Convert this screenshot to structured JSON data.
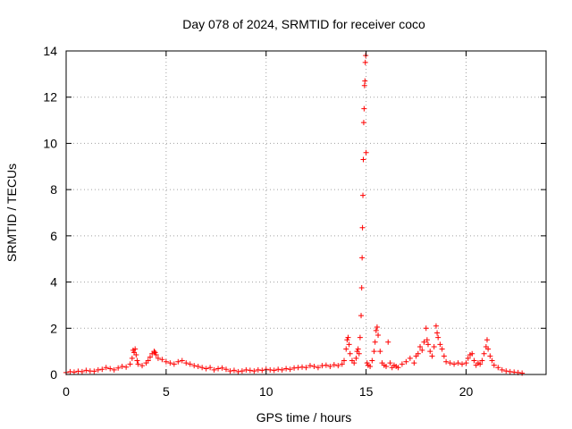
{
  "chart_data": {
    "type": "scatter",
    "title": "Day 078 of 2024, SRMTID for receiver coco",
    "xlabel": "GPS time / hours",
    "ylabel": "SRMTID / TECUs",
    "xlim": [
      0,
      24
    ],
    "ylim": [
      0,
      14
    ],
    "x_ticks": [
      0,
      5,
      10,
      15,
      20
    ],
    "y_ticks": [
      0,
      2,
      4,
      6,
      8,
      10,
      12,
      14
    ],
    "grid": true,
    "marker": "+",
    "series": [
      {
        "name": "SRMTID",
        "color": "#ff0000",
        "points": [
          [
            0.0,
            0.08
          ],
          [
            0.2,
            0.12
          ],
          [
            0.4,
            0.1
          ],
          [
            0.6,
            0.14
          ],
          [
            0.8,
            0.12
          ],
          [
            1.0,
            0.18
          ],
          [
            1.2,
            0.15
          ],
          [
            1.4,
            0.14
          ],
          [
            1.6,
            0.2
          ],
          [
            1.8,
            0.22
          ],
          [
            2.0,
            0.3
          ],
          [
            2.2,
            0.25
          ],
          [
            2.4,
            0.2
          ],
          [
            2.6,
            0.28
          ],
          [
            2.8,
            0.35
          ],
          [
            3.0,
            0.32
          ],
          [
            3.2,
            0.45
          ],
          [
            3.3,
            0.7
          ],
          [
            3.35,
            1.05
          ],
          [
            3.4,
            0.95
          ],
          [
            3.45,
            1.1
          ],
          [
            3.5,
            0.85
          ],
          [
            3.55,
            0.6
          ],
          [
            3.6,
            0.45
          ],
          [
            3.8,
            0.38
          ],
          [
            4.0,
            0.5
          ],
          [
            4.1,
            0.6
          ],
          [
            4.2,
            0.75
          ],
          [
            4.3,
            0.9
          ],
          [
            4.4,
            1.0
          ],
          [
            4.45,
            0.95
          ],
          [
            4.5,
            0.85
          ],
          [
            4.6,
            0.7
          ],
          [
            4.8,
            0.65
          ],
          [
            5.0,
            0.55
          ],
          [
            5.2,
            0.5
          ],
          [
            5.4,
            0.45
          ],
          [
            5.6,
            0.55
          ],
          [
            5.8,
            0.6
          ],
          [
            6.0,
            0.5
          ],
          [
            6.2,
            0.45
          ],
          [
            6.4,
            0.38
          ],
          [
            6.6,
            0.35
          ],
          [
            6.8,
            0.3
          ],
          [
            7.0,
            0.25
          ],
          [
            7.2,
            0.3
          ],
          [
            7.4,
            0.2
          ],
          [
            7.6,
            0.25
          ],
          [
            7.8,
            0.28
          ],
          [
            8.0,
            0.22
          ],
          [
            8.2,
            0.15
          ],
          [
            8.4,
            0.18
          ],
          [
            8.6,
            0.12
          ],
          [
            8.8,
            0.15
          ],
          [
            9.0,
            0.2
          ],
          [
            9.2,
            0.18
          ],
          [
            9.4,
            0.15
          ],
          [
            9.6,
            0.2
          ],
          [
            9.8,
            0.18
          ],
          [
            10.0,
            0.22
          ],
          [
            10.2,
            0.2
          ],
          [
            10.4,
            0.18
          ],
          [
            10.6,
            0.22
          ],
          [
            10.8,
            0.2
          ],
          [
            11.0,
            0.25
          ],
          [
            11.2,
            0.22
          ],
          [
            11.4,
            0.28
          ],
          [
            11.6,
            0.3
          ],
          [
            11.8,
            0.32
          ],
          [
            12.0,
            0.3
          ],
          [
            12.2,
            0.38
          ],
          [
            12.4,
            0.35
          ],
          [
            12.6,
            0.3
          ],
          [
            12.8,
            0.38
          ],
          [
            13.0,
            0.4
          ],
          [
            13.2,
            0.35
          ],
          [
            13.4,
            0.42
          ],
          [
            13.6,
            0.38
          ],
          [
            13.8,
            0.45
          ],
          [
            13.9,
            0.6
          ],
          [
            14.0,
            1.1
          ],
          [
            14.05,
            1.5
          ],
          [
            14.1,
            1.6
          ],
          [
            14.15,
            1.3
          ],
          [
            14.2,
            0.9
          ],
          [
            14.3,
            0.6
          ],
          [
            14.4,
            0.5
          ],
          [
            14.5,
            0.7
          ],
          [
            14.55,
            1.0
          ],
          [
            14.6,
            1.1
          ],
          [
            14.65,
            0.9
          ],
          [
            14.7,
            1.6
          ],
          [
            14.75,
            2.55
          ],
          [
            14.78,
            3.75
          ],
          [
            14.8,
            5.05
          ],
          [
            14.82,
            6.35
          ],
          [
            14.84,
            7.75
          ],
          [
            14.86,
            9.3
          ],
          [
            14.88,
            10.9
          ],
          [
            14.9,
            11.5
          ],
          [
            14.92,
            12.5
          ],
          [
            14.94,
            12.7
          ],
          [
            14.96,
            13.5
          ],
          [
            14.98,
            13.8
          ],
          [
            15.0,
            9.6
          ],
          [
            15.05,
            0.5
          ],
          [
            15.1,
            0.4
          ],
          [
            15.2,
            0.35
          ],
          [
            15.3,
            0.6
          ],
          [
            15.4,
            1.0
          ],
          [
            15.45,
            1.4
          ],
          [
            15.5,
            1.9
          ],
          [
            15.55,
            2.05
          ],
          [
            15.6,
            1.7
          ],
          [
            15.7,
            1.0
          ],
          [
            15.8,
            0.5
          ],
          [
            15.9,
            0.4
          ],
          [
            16.0,
            0.35
          ],
          [
            16.1,
            1.4
          ],
          [
            16.2,
            0.5
          ],
          [
            16.3,
            0.3
          ],
          [
            16.4,
            0.4
          ],
          [
            16.5,
            0.35
          ],
          [
            16.6,
            0.3
          ],
          [
            16.8,
            0.45
          ],
          [
            17.0,
            0.55
          ],
          [
            17.2,
            0.7
          ],
          [
            17.4,
            0.5
          ],
          [
            17.5,
            0.8
          ],
          [
            17.6,
            0.9
          ],
          [
            17.7,
            1.2
          ],
          [
            17.8,
            1.05
          ],
          [
            17.9,
            1.4
          ],
          [
            18.0,
            2.0
          ],
          [
            18.05,
            1.5
          ],
          [
            18.1,
            1.3
          ],
          [
            18.2,
            1.0
          ],
          [
            18.3,
            0.8
          ],
          [
            18.4,
            1.2
          ],
          [
            18.5,
            2.1
          ],
          [
            18.55,
            1.8
          ],
          [
            18.6,
            1.6
          ],
          [
            18.7,
            1.3
          ],
          [
            18.8,
            1.1
          ],
          [
            18.9,
            0.8
          ],
          [
            19.0,
            0.55
          ],
          [
            19.2,
            0.5
          ],
          [
            19.4,
            0.45
          ],
          [
            19.6,
            0.5
          ],
          [
            19.8,
            0.45
          ],
          [
            20.0,
            0.5
          ],
          [
            20.1,
            0.7
          ],
          [
            20.2,
            0.85
          ],
          [
            20.3,
            0.9
          ],
          [
            20.4,
            0.6
          ],
          [
            20.5,
            0.4
          ],
          [
            20.6,
            0.5
          ],
          [
            20.7,
            0.45
          ],
          [
            20.8,
            0.6
          ],
          [
            20.9,
            0.9
          ],
          [
            21.0,
            1.2
          ],
          [
            21.05,
            1.5
          ],
          [
            21.1,
            1.1
          ],
          [
            21.2,
            0.8
          ],
          [
            21.3,
            0.6
          ],
          [
            21.4,
            0.4
          ],
          [
            21.6,
            0.3
          ],
          [
            21.8,
            0.2
          ],
          [
            22.0,
            0.15
          ],
          [
            22.2,
            0.12
          ],
          [
            22.4,
            0.1
          ],
          [
            22.6,
            0.08
          ],
          [
            22.8,
            0.06
          ]
        ]
      }
    ]
  }
}
